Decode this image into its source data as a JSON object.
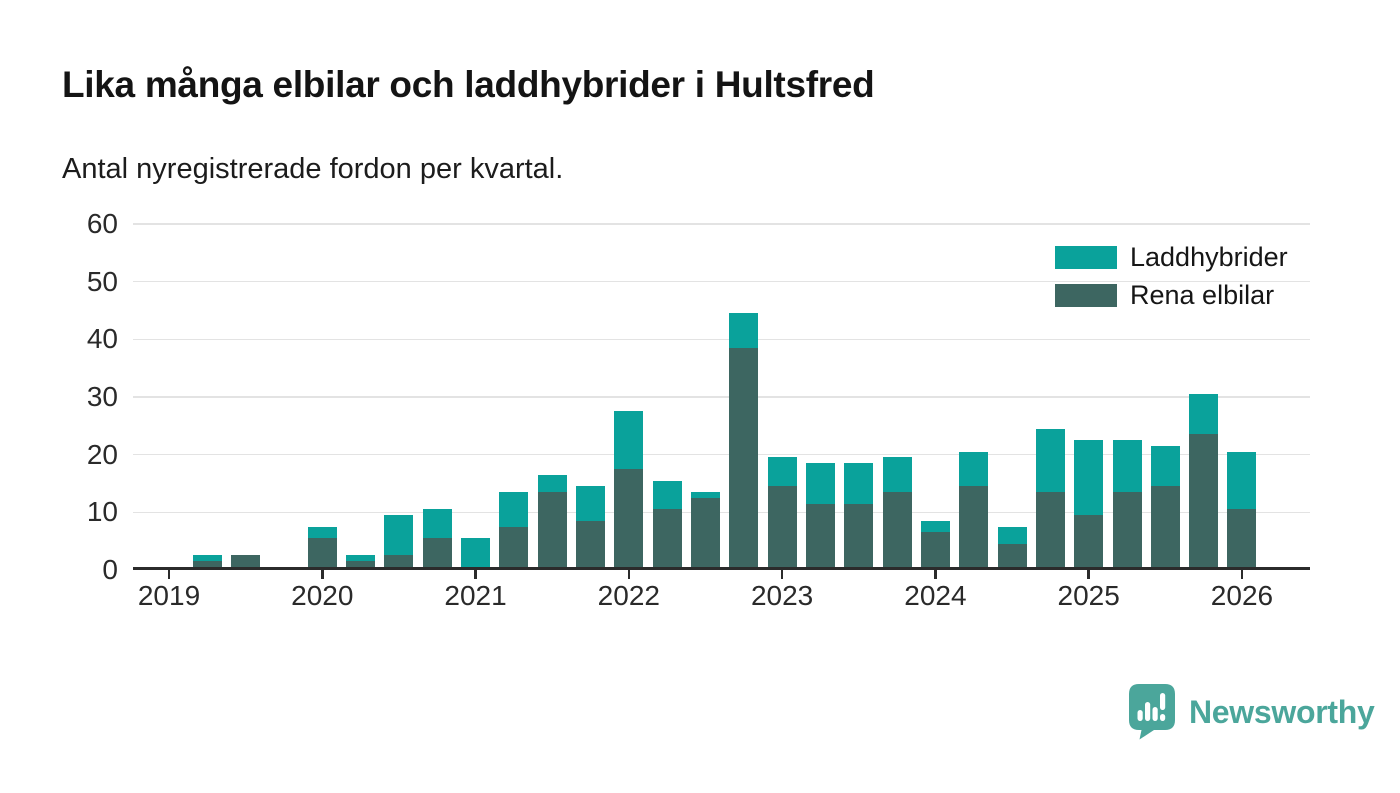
{
  "header": {
    "title": "Lika många elbilar och laddhybrider i Hultsfred",
    "subtitle": "Antal nyregistrerade fordon per kvartal."
  },
  "chart_data": {
    "type": "bar",
    "stacked": true,
    "title": "Lika många elbilar och laddhybrider i Hultsfred",
    "subtitle": "Antal nyregistrerade fordon per kvartal.",
    "categories": [
      "2019 K1",
      "2019 K2",
      "2019 K3",
      "2019 K4",
      "2020 K1",
      "2020 K2",
      "2020 K3",
      "2020 K4",
      "2021 K1",
      "2021 K2",
      "2021 K3",
      "2021 K4",
      "2022 K1",
      "2022 K2",
      "2022 K3",
      "2022 K4",
      "2023 K1",
      "2023 K2",
      "2023 K3",
      "2023 K4",
      "2024 K1",
      "2024 K2",
      "2024 K3",
      "2024 K4",
      "2025 K1",
      "2025 K2",
      "2025 K3",
      "2025 K4",
      "2026 K1"
    ],
    "series": [
      {
        "name": "Laddhybrider",
        "color": "#0aa29b",
        "values": [
          0,
          1,
          0,
          0,
          2,
          1,
          7,
          5,
          5,
          6,
          3,
          6,
          10,
          5,
          1,
          6,
          5,
          7,
          7,
          6,
          2,
          6,
          3,
          11,
          13,
          9,
          7,
          7,
          10
        ]
      },
      {
        "name": "Rena elbilar",
        "color": "#3d6661",
        "values": [
          0,
          1,
          2,
          0,
          5,
          1,
          2,
          5,
          0,
          7,
          13,
          8,
          17,
          10,
          12,
          38,
          14,
          11,
          11,
          13,
          6,
          14,
          4,
          13,
          9,
          13,
          14,
          23,
          10
        ]
      }
    ],
    "stack_bottom_series": "Rena elbilar",
    "xtick_labels": [
      "2019",
      "2020",
      "2021",
      "2022",
      "2023",
      "2024",
      "2025",
      "2026"
    ],
    "ytick_values": [
      0,
      10,
      20,
      30,
      40,
      50,
      60
    ],
    "ylim": [
      0,
      60
    ],
    "grid": "horizontal",
    "legend_position": "top-right"
  },
  "branding": {
    "label": "Newsworthy",
    "color": "#4ba69b"
  }
}
